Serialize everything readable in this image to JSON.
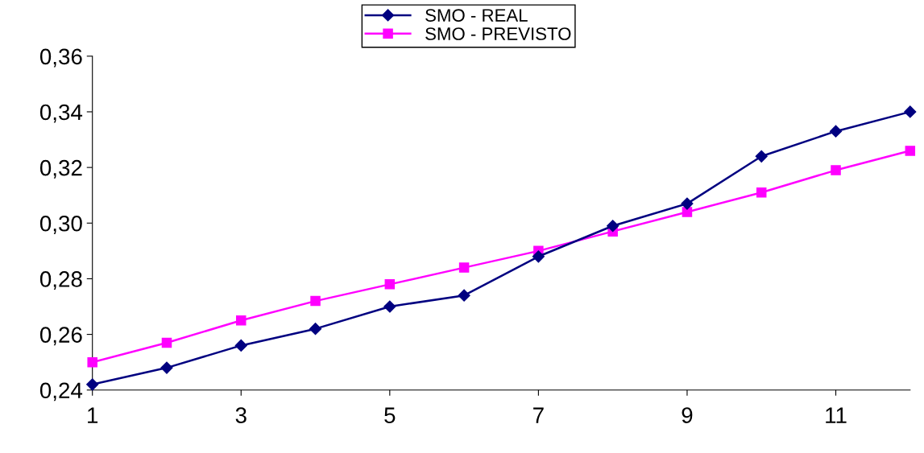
{
  "chart_data": {
    "type": "line",
    "x": [
      1,
      2,
      3,
      4,
      5,
      6,
      7,
      8,
      9,
      10,
      11,
      12
    ],
    "series": [
      {
        "name": "SMO - REAL",
        "color": "#000080",
        "marker": "diamond",
        "values": [
          0.242,
          0.248,
          0.256,
          0.262,
          0.27,
          0.274,
          0.288,
          0.299,
          0.307,
          0.324,
          0.333,
          0.34
        ]
      },
      {
        "name": "SMO - PREVISTO",
        "color": "#ff00ff",
        "marker": "square",
        "values": [
          0.25,
          0.257,
          0.265,
          0.272,
          0.278,
          0.284,
          0.29,
          0.297,
          0.304,
          0.311,
          0.319,
          0.326
        ]
      }
    ],
    "xlim": [
      1,
      12
    ],
    "xticks": [
      1,
      3,
      5,
      7,
      9,
      11
    ],
    "ylim": [
      0.24,
      0.36
    ],
    "yticks": [
      {
        "value": 0.24,
        "label": "0,24"
      },
      {
        "value": 0.26,
        "label": "0,26"
      },
      {
        "value": 0.28,
        "label": "0,28"
      },
      {
        "value": 0.3,
        "label": "0,30"
      },
      {
        "value": 0.32,
        "label": "0,32"
      },
      {
        "value": 0.34,
        "label": "0,34"
      },
      {
        "value": 0.36,
        "label": "0,36"
      }
    ],
    "grid": false,
    "legend": "top",
    "line_style": "solid"
  }
}
